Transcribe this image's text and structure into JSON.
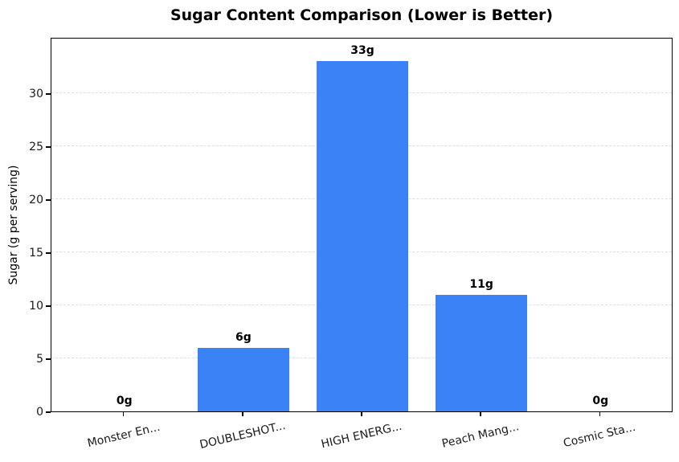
{
  "chart_data": {
    "type": "bar",
    "title": "Sugar Content Comparison (Lower is Better)",
    "ylabel": "Sugar (g per serving)",
    "xlabel": "",
    "categories": [
      "Monster En...",
      "DOUBLESHOT...",
      "HIGH ENERG...",
      "Peach Mang...",
      "Cosmic Sta..."
    ],
    "values": [
      0,
      6,
      33,
      11,
      0
    ],
    "bar_labels": [
      "0g",
      "6g",
      "33g",
      "11g",
      "0g"
    ],
    "yticks": [
      0,
      5,
      10,
      15,
      20,
      25,
      30
    ],
    "ylim": [
      0,
      35.3
    ],
    "bar_color": "#3b82f6",
    "grid": {
      "axis": "y",
      "style": "dashed",
      "color": "#dedede"
    },
    "legend": "none"
  }
}
